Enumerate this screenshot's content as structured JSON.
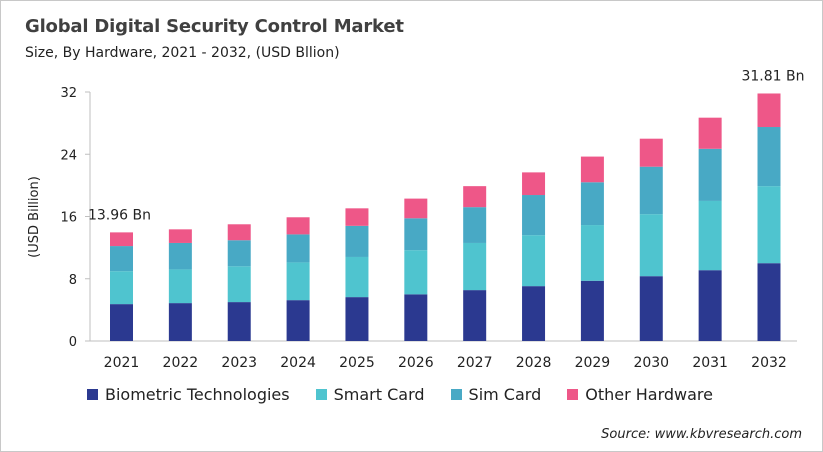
{
  "chart_data": {
    "type": "bar",
    "stacked": true,
    "title": "Global Digital Security Control Market",
    "subtitle": "Size, By Hardware, 2021 - 2032, (USD Bllion)",
    "xlabel": "",
    "ylabel": "(USD Billion)",
    "ylim": [
      0,
      32
    ],
    "yticks": [
      0,
      8,
      16,
      24,
      32
    ],
    "grid": false,
    "legend_position": "bottom",
    "categories": [
      "2021",
      "2022",
      "2023",
      "2024",
      "2025",
      "2026",
      "2027",
      "2028",
      "2029",
      "2030",
      "2031",
      "2032"
    ],
    "series": [
      {
        "name": "Biometric Technologies",
        "color": "#2b3990",
        "values": [
          4.74,
          4.87,
          5.0,
          5.25,
          5.64,
          6.0,
          6.54,
          7.05,
          7.74,
          8.33,
          9.1,
          10.0
        ]
      },
      {
        "name": "Smart Card",
        "color": "#4fc4cf",
        "values": [
          4.23,
          4.33,
          4.6,
          4.85,
          5.16,
          5.67,
          6.06,
          6.55,
          7.16,
          7.97,
          8.9,
          9.9
        ]
      },
      {
        "name": "Sim Card",
        "color": "#48a9c5",
        "values": [
          3.23,
          3.4,
          3.35,
          3.6,
          4.0,
          4.1,
          4.6,
          5.16,
          5.5,
          6.1,
          6.7,
          7.6
        ]
      },
      {
        "name": "Other Hardware",
        "color": "#ee5788",
        "values": [
          1.76,
          1.75,
          2.05,
          2.2,
          2.25,
          2.53,
          2.7,
          2.91,
          3.3,
          3.6,
          4.0,
          4.31
        ]
      }
    ],
    "annotations": [
      {
        "category": "2021",
        "text": "13.96 Bn"
      },
      {
        "category": "2032",
        "text": "31.81 Bn"
      }
    ]
  },
  "source": "Source: www.kbvresearch.com"
}
